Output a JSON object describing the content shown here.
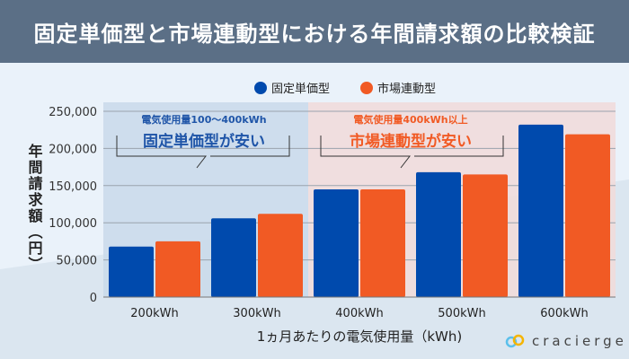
{
  "header": {
    "title": "固定単価型と市場連動型における年間請求額の比較検証"
  },
  "logo": {
    "text": "cracierge"
  },
  "chart_data": {
    "type": "bar",
    "title": "固定単価型と市場連動型における年間請求額の比較検証",
    "categories": [
      "200kWh",
      "300kWh",
      "400kWh",
      "500kWh",
      "600kWh"
    ],
    "series": [
      {
        "name": "固定単価型",
        "color": "#004aad",
        "values": [
          68000,
          106000,
          145000,
          168000,
          232000
        ]
      },
      {
        "name": "市場連動型",
        "color": "#f15a24",
        "values": [
          75000,
          112000,
          145000,
          165000,
          219000
        ]
      }
    ],
    "xlabel": "1ヵ月あたりの電気使用量（kWh)",
    "ylabel": "年間請求額（円）",
    "ylim": [
      0,
      250000
    ],
    "yticks": [
      0,
      50000,
      100000,
      150000,
      200000,
      250000
    ],
    "ytick_labels": [
      "0",
      "50,000",
      "100,000",
      "150,000",
      "200,000",
      "250,000"
    ],
    "grid": true,
    "legend": "top-right",
    "annotations": [
      {
        "sub": "電気使用量100〜400kWh",
        "main": "固定単価型が安い",
        "color": "#1f55a8",
        "region_bg": "#c9d9ea"
      },
      {
        "sub": "電気使用量400kWh以上",
        "main": "市場連動型が安い",
        "color": "#f15a24",
        "region_bg": "#f1dbd9"
      }
    ]
  }
}
